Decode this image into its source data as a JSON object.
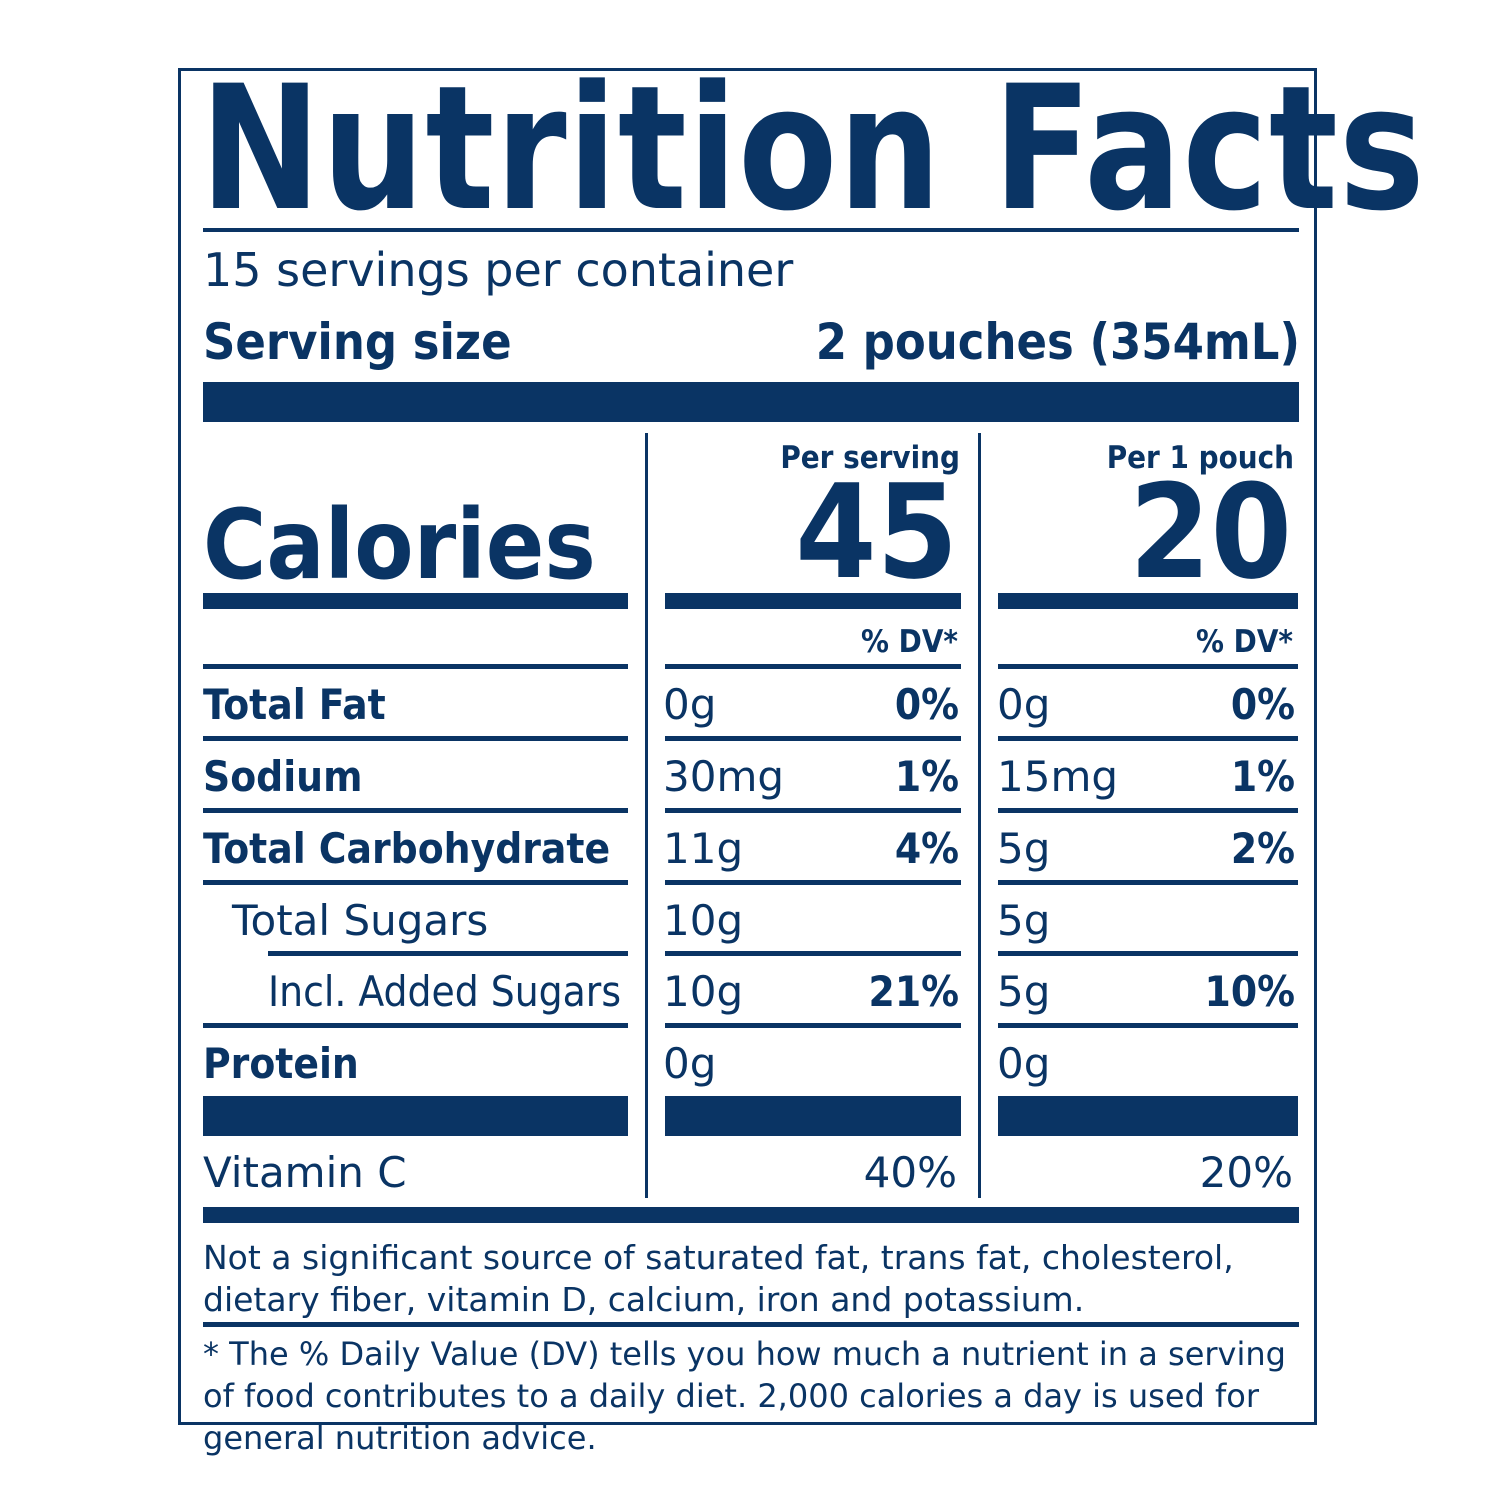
{
  "title": "Nutrition Facts",
  "servings_per_container": "15 servings per container",
  "serving_size_label": "Serving size",
  "serving_size_value": "2 pouches (354mL)",
  "calories_label": "Calories",
  "columns": [
    {
      "header": "Per serving",
      "calories": "45",
      "dv_label": "% DV*"
    },
    {
      "header": "Per 1 pouch",
      "calories": "20",
      "dv_label": "% DV*"
    }
  ],
  "nutrients": [
    {
      "label": "Total Fat",
      "values": [
        {
          "amount": "0g",
          "dv": "0%"
        },
        {
          "amount": "0g",
          "dv": "0%"
        }
      ]
    },
    {
      "label": "Sodium",
      "values": [
        {
          "amount": "30mg",
          "dv": "1%"
        },
        {
          "amount": "15mg",
          "dv": "1%"
        }
      ]
    },
    {
      "label": "Total Carbohydrate",
      "values": [
        {
          "amount": "11g",
          "dv": "4%"
        },
        {
          "amount": "5g",
          "dv": "2%"
        }
      ]
    },
    {
      "label": "Total Sugars",
      "values": [
        {
          "amount": "10g",
          "dv": ""
        },
        {
          "amount": "5g",
          "dv": ""
        }
      ]
    },
    {
      "label": "Incl. Added Sugars",
      "values": [
        {
          "amount": "10g",
          "dv": "21%"
        },
        {
          "amount": "5g",
          "dv": "10%"
        }
      ]
    },
    {
      "label": "Protein",
      "values": [
        {
          "amount": "0g",
          "dv": ""
        },
        {
          "amount": "0g",
          "dv": ""
        }
      ]
    }
  ],
  "vitamins": [
    {
      "label": "Vitamin C",
      "values": [
        "40%",
        "20%"
      ]
    }
  ],
  "footnote_not_significant": "Not a significant source of saturated fat, trans fat, cholesterol, dietary fiber, vitamin D, calcium, iron and potassium.",
  "footnote_dv": "* The % Daily Value (DV) tells you how much a nutrient in a serving of food contributes to a daily diet. 2,000 calories a day is used for general nutrition advice.",
  "colors": {
    "ink": "#0a3464",
    "background": "#ffffff"
  }
}
